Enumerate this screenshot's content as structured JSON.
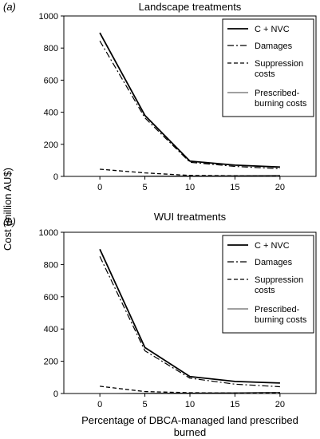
{
  "figure": {
    "shared_ylabel": "Cost (million AU$)",
    "shared_xlabel_lines": [
      "Percentage of DBCA-managed land prescribed",
      "burned"
    ]
  },
  "chart_data": [
    {
      "type": "line",
      "panel_tag": "(a)",
      "title": "Landscape treatments",
      "x": [
        0,
        5,
        10,
        15,
        20
      ],
      "xticks": [
        "0",
        "5",
        "10",
        "15",
        "20"
      ],
      "xlim": [
        -4,
        24
      ],
      "ylim": [
        0,
        1000
      ],
      "yticks": [
        "0",
        "200",
        "400",
        "600",
        "800",
        "1000"
      ],
      "legend_position": "top-right",
      "grid": false,
      "series": [
        {
          "name": "C + NVC",
          "values": [
            895,
            380,
            95,
            70,
            58
          ],
          "style": "solid",
          "width": 1.8
        },
        {
          "name": "Damages",
          "values": [
            845,
            365,
            88,
            62,
            48
          ],
          "style": "dashdot",
          "width": 1.2
        },
        {
          "name": "Suppression costs",
          "label_lines": [
            "Suppression",
            "costs"
          ],
          "values": [
            45,
            22,
            6,
            4,
            3
          ],
          "style": "dashed",
          "width": 1.3
        },
        {
          "name": "Prescribed-burning costs",
          "label_lines": [
            "Prescribed-",
            "burning costs"
          ],
          "values": [
            0,
            2,
            3,
            4,
            6
          ],
          "style": "solid",
          "width": 0.8
        }
      ]
    },
    {
      "type": "line",
      "panel_tag": "(b)",
      "title": "WUI treatments",
      "x": [
        0,
        5,
        10,
        15,
        20
      ],
      "xticks": [
        "0",
        "5",
        "10",
        "15",
        "20"
      ],
      "xlim": [
        -4,
        24
      ],
      "ylim": [
        0,
        1000
      ],
      "yticks": [
        "0",
        "200",
        "400",
        "600",
        "800",
        "1000"
      ],
      "legend_position": "top-right",
      "grid": false,
      "series": [
        {
          "name": "C + NVC",
          "values": [
            895,
            285,
            105,
            75,
            65
          ],
          "style": "solid",
          "width": 1.8
        },
        {
          "name": "Damages",
          "values": [
            850,
            265,
            95,
            58,
            42
          ],
          "style": "dashdot",
          "width": 1.2
        },
        {
          "name": "Suppression costs",
          "label_lines": [
            "Suppression",
            "costs"
          ],
          "values": [
            45,
            12,
            5,
            3,
            3
          ],
          "style": "dashed",
          "width": 1.3
        },
        {
          "name": "Prescribed-burning costs",
          "label_lines": [
            "Prescribed-",
            "burning costs"
          ],
          "values": [
            0,
            2,
            3,
            5,
            8
          ],
          "style": "solid",
          "width": 0.8
        }
      ]
    }
  ]
}
